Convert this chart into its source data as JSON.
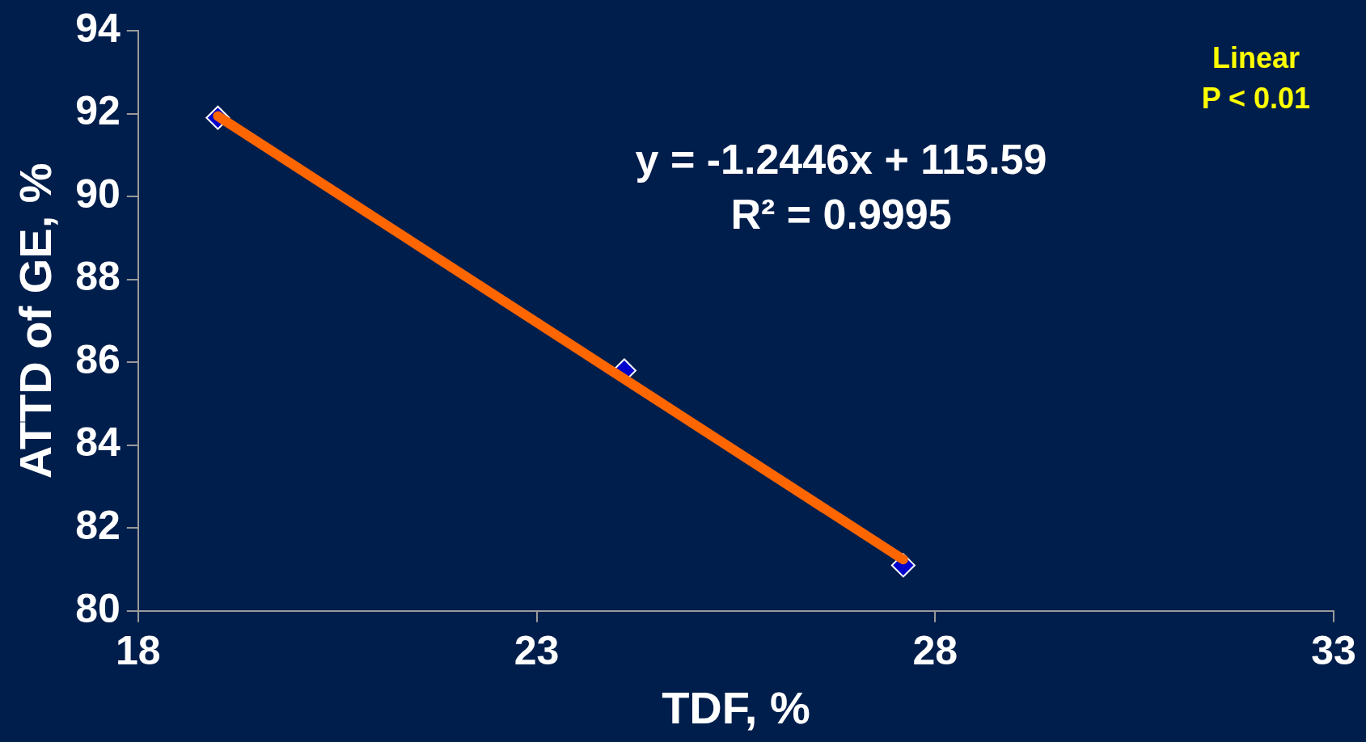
{
  "chart_data": {
    "type": "scatter",
    "xlabel": "TDF, %",
    "ylabel": "ATTD of GE, %",
    "xlim": [
      18,
      33
    ],
    "xticks": [
      18,
      23,
      28,
      33
    ],
    "ylim": [
      80,
      94
    ],
    "yticks": [
      80,
      82,
      84,
      86,
      88,
      90,
      92,
      94
    ],
    "grid": false,
    "legend": false,
    "annotations": [
      "y = -1.2446x + 115.59",
      "R² = 0.9995",
      "Linear",
      "P < 0.01"
    ],
    "series": [
      {
        "type": "scatter",
        "x": [
          19,
          24.1,
          27.6
        ],
        "values": [
          91.9,
          85.8,
          81.1
        ],
        "color": "#0000cc",
        "marker": "diamond"
      },
      {
        "type": "line",
        "x": [
          19,
          27.6
        ],
        "values": [
          91.94,
          81.24
        ],
        "color": "#ff6600",
        "marker": "none",
        "line_style": "solid"
      }
    ]
  }
}
